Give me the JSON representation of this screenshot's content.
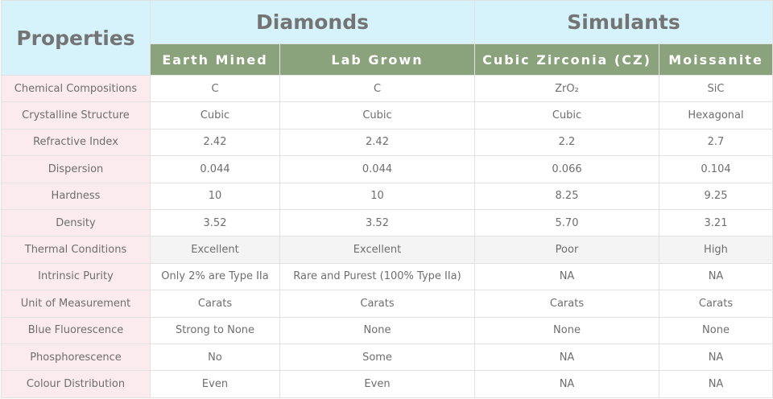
{
  "header": {
    "properties": "Properties",
    "groups": [
      "Diamonds",
      "Simulants"
    ],
    "columns": [
      "Earth Mined",
      "Lab Grown",
      "Cubic Zirconia (CZ)",
      "Moissanite"
    ]
  },
  "rows": [
    {
      "property": "Chemical Compositions",
      "values": [
        "C",
        "C",
        "ZrO₂",
        "SiC"
      ]
    },
    {
      "property": "Crystalline Structure",
      "values": [
        "Cubic",
        "Cubic",
        "Cubic",
        "Hexagonal"
      ]
    },
    {
      "property": "Refractive Index",
      "values": [
        "2.42",
        "2.42",
        "2.2",
        "2.7"
      ]
    },
    {
      "property": "Dispersion",
      "values": [
        "0.044",
        "0.044",
        "0.066",
        "0.104"
      ]
    },
    {
      "property": "Hardness",
      "values": [
        "10",
        "10",
        "8.25",
        "9.25"
      ]
    },
    {
      "property": "Density",
      "values": [
        "3.52",
        "3.52",
        "5.70",
        "3.21"
      ]
    },
    {
      "property": "Thermal Conditions",
      "values": [
        "Excellent",
        "Excellent",
        "Poor",
        "High"
      ],
      "highlighted": true
    },
    {
      "property": "Intrinsic Purity",
      "values": [
        "Only 2% are Type IIa",
        "Rare and Purest (100% Type IIa)",
        "NA",
        "NA"
      ]
    },
    {
      "property": "Unit of Measurement",
      "values": [
        "Carats",
        "Carats",
        "Carats",
        "Carats"
      ]
    },
    {
      "property": "Blue Fluorescence",
      "values": [
        "Strong to None",
        "None",
        "None",
        "None"
      ]
    },
    {
      "property": "Phosphorescence",
      "values": [
        "No",
        "Some",
        "NA",
        "NA"
      ]
    },
    {
      "property": "Colour Distribution",
      "values": [
        "Even",
        "Even",
        "NA",
        "NA"
      ]
    }
  ],
  "colors": {
    "header_bg": "#d6f3fc",
    "subheader_bg": "#8ba37c",
    "property_bg": "#fbebef",
    "highlight_row_bg": "#f4f4f4"
  }
}
